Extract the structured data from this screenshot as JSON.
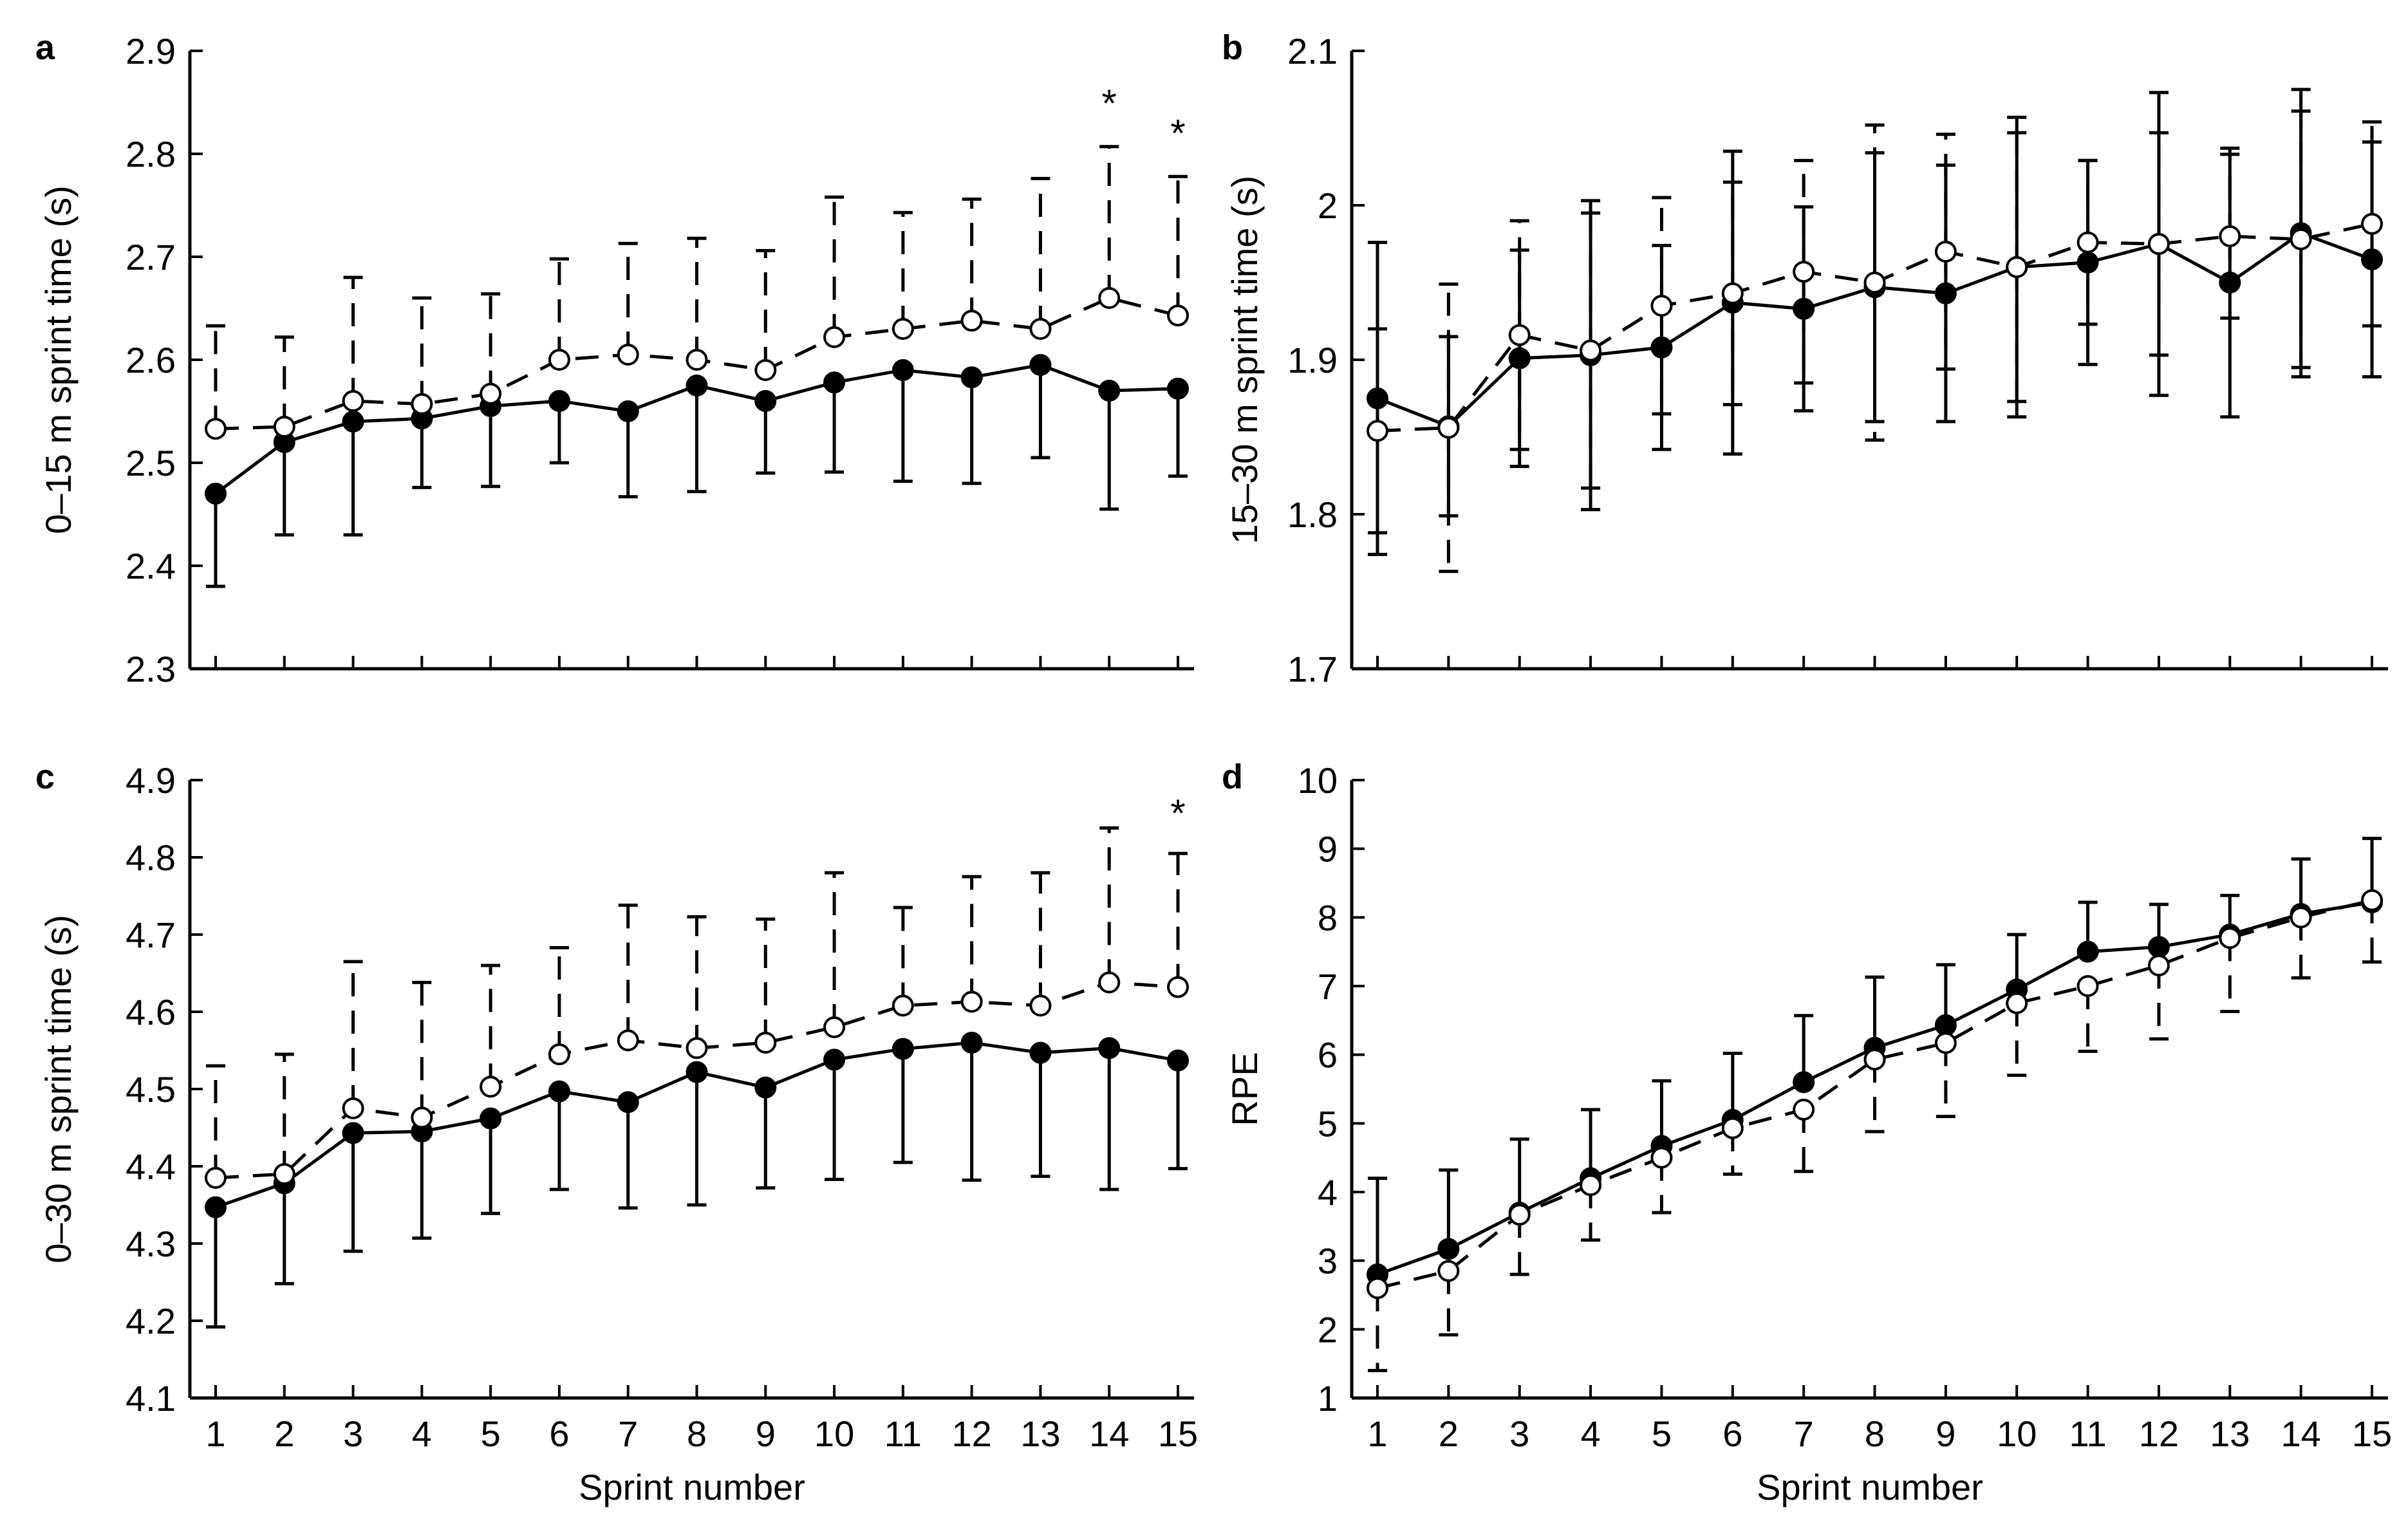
{
  "chart_data": [
    {
      "panel": "a",
      "type": "line",
      "ylabel": "0–15 m sprint time (s)",
      "xlabel": "",
      "ylim": [
        2.3,
        2.9
      ],
      "yticks": [
        2.3,
        2.4,
        2.5,
        2.6,
        2.7,
        2.8,
        2.9
      ],
      "ytick_labels": [
        "2.3",
        "2.4",
        "2.5",
        "2.6",
        "2.7",
        "2.8",
        "2.9"
      ],
      "x": [
        1,
        2,
        3,
        4,
        5,
        6,
        7,
        8,
        9,
        10,
        11,
        12,
        13,
        14,
        15
      ],
      "series": [
        {
          "name": "filled",
          "marker": "filled-circle",
          "line": "solid",
          "values": [
            2.47,
            2.52,
            2.54,
            2.543,
            2.555,
            2.56,
            2.55,
            2.575,
            2.56,
            2.578,
            2.59,
            2.583,
            2.595,
            2.57,
            2.572
          ],
          "error": [
            0.09,
            0.09,
            0.11,
            0.067,
            0.078,
            0.06,
            0.083,
            0.103,
            0.07,
            0.087,
            0.108,
            0.103,
            0.09,
            0.115,
            0.085
          ],
          "error_dir": "down"
        },
        {
          "name": "open",
          "marker": "open-circle",
          "line": "dashed",
          "values": [
            2.533,
            2.535,
            2.56,
            2.557,
            2.567,
            2.6,
            2.605,
            2.6,
            2.59,
            2.622,
            2.63,
            2.638,
            2.63,
            2.66,
            2.643
          ],
          "error": [
            0.1,
            0.087,
            0.12,
            0.103,
            0.097,
            0.098,
            0.108,
            0.118,
            0.116,
            0.136,
            0.113,
            0.118,
            0.146,
            0.147,
            0.135
          ],
          "error_dir": "up"
        }
      ],
      "annotations": [
        {
          "text": "*",
          "x": 14,
          "y": 2.855
        },
        {
          "text": "*",
          "x": 15,
          "y": 2.826
        }
      ]
    },
    {
      "panel": "b",
      "type": "line",
      "ylabel": "15–30 m sprint time (s)",
      "xlabel": "",
      "ylim": [
        1.7,
        2.1
      ],
      "yticks": [
        1.7,
        1.8,
        1.9,
        2.0,
        2.1
      ],
      "ytick_labels": [
        "1.7",
        "1.8",
        "1.9",
        "2",
        "2.1"
      ],
      "x": [
        1,
        2,
        3,
        4,
        5,
        6,
        7,
        8,
        9,
        10,
        11,
        12,
        13,
        14,
        15
      ],
      "series": [
        {
          "name": "filled",
          "marker": "filled-circle",
          "line": "solid",
          "values": [
            1.875,
            1.857,
            1.901,
            1.903,
            1.908,
            1.937,
            1.933,
            1.947,
            1.943,
            1.96,
            1.963,
            1.975,
            1.95,
            1.982,
            1.965
          ],
          "error": [
            0.101,
            0.058,
            0.07,
            0.1,
            0.066,
            0.098,
            0.066,
            0.087,
            0.083,
            0.097,
            0.066,
            0.098,
            0.087,
            0.093,
            0.076
          ],
          "error_dir": "both"
        },
        {
          "name": "open",
          "marker": "open-circle",
          "line": "dashed",
          "values": [
            1.854,
            1.856,
            1.916,
            1.906,
            1.935,
            1.943,
            1.957,
            1.95,
            1.97,
            1.96,
            1.976,
            1.975,
            1.98,
            1.978,
            1.988
          ],
          "error": [
            0.066,
            0.093,
            0.074,
            0.089,
            0.07,
            0.072,
            0.072,
            0.102,
            0.076,
            0.087,
            0.053,
            0.072,
            0.053,
            0.083,
            0.066
          ],
          "error_dir": "both"
        }
      ],
      "annotations": []
    },
    {
      "panel": "c",
      "type": "line",
      "ylabel": "0–30 m sprint time (s)",
      "xlabel": "Sprint number",
      "ylim": [
        4.1,
        4.9
      ],
      "yticks": [
        4.1,
        4.2,
        4.3,
        4.4,
        4.5,
        4.6,
        4.7,
        4.8,
        4.9
      ],
      "ytick_labels": [
        "4.1",
        "4.2",
        "4.3",
        "4.4",
        "4.5",
        "4.6",
        "4.7",
        "4.8",
        "4.9"
      ],
      "x": [
        1,
        2,
        3,
        4,
        5,
        6,
        7,
        8,
        9,
        10,
        11,
        12,
        13,
        14,
        15
      ],
      "xtick_labels": [
        "1",
        "2",
        "3",
        "4",
        "5",
        "6",
        "7",
        "8",
        "9",
        "10",
        "11",
        "12",
        "13",
        "14",
        "15"
      ],
      "series": [
        {
          "name": "filled",
          "marker": "filled-circle",
          "line": "solid",
          "values": [
            4.347,
            4.378,
            4.443,
            4.445,
            4.462,
            4.497,
            4.483,
            4.522,
            4.502,
            4.538,
            4.552,
            4.56,
            4.547,
            4.553,
            4.537
          ],
          "error": [
            0.155,
            0.13,
            0.153,
            0.138,
            0.123,
            0.127,
            0.137,
            0.172,
            0.13,
            0.155,
            0.147,
            0.178,
            0.16,
            0.183,
            0.14
          ],
          "error_dir": "down"
        },
        {
          "name": "open",
          "marker": "open-circle",
          "line": "dashed",
          "values": [
            4.385,
            4.39,
            4.475,
            4.463,
            4.503,
            4.545,
            4.563,
            4.553,
            4.56,
            4.58,
            4.608,
            4.613,
            4.608,
            4.638,
            4.632
          ],
          "error": [
            0.145,
            0.155,
            0.19,
            0.175,
            0.157,
            0.138,
            0.175,
            0.17,
            0.16,
            0.2,
            0.127,
            0.162,
            0.172,
            0.2,
            0.173
          ],
          "error_dir": "up"
        }
      ],
      "annotations": [
        {
          "text": "*",
          "x": 15,
          "y": 4.865
        }
      ]
    },
    {
      "panel": "d",
      "type": "line",
      "ylabel": "RPE",
      "xlabel": "Sprint number",
      "ylim": [
        1,
        10
      ],
      "yticks": [
        1,
        2,
        3,
        4,
        5,
        6,
        7,
        8,
        9,
        10
      ],
      "ytick_labels": [
        "1",
        "2",
        "3",
        "4",
        "5",
        "6",
        "7",
        "8",
        "9",
        "10"
      ],
      "x": [
        1,
        2,
        3,
        4,
        5,
        6,
        7,
        8,
        9,
        10,
        11,
        12,
        13,
        14,
        15
      ],
      "xtick_labels": [
        "1",
        "2",
        "3",
        "4",
        "5",
        "6",
        "7",
        "8",
        "9",
        "10",
        "11",
        "12",
        "13",
        "14",
        "15"
      ],
      "series": [
        {
          "name": "filled",
          "marker": "filled-circle",
          "line": "solid",
          "values": [
            2.8,
            3.17,
            3.7,
            4.2,
            4.67,
            5.05,
            5.6,
            6.1,
            6.43,
            6.95,
            7.5,
            7.57,
            7.75,
            8.05,
            8.22
          ],
          "error": [
            1.4,
            1.15,
            1.07,
            1.0,
            0.95,
            0.97,
            0.97,
            1.03,
            0.88,
            0.8,
            0.72,
            0.62,
            0.57,
            0.8,
            0.93
          ],
          "error_dir": "up"
        },
        {
          "name": "open",
          "marker": "open-circle",
          "line": "dashed",
          "values": [
            2.6,
            2.85,
            3.67,
            4.1,
            4.5,
            4.93,
            5.2,
            5.93,
            6.17,
            6.75,
            7.0,
            7.3,
            7.7,
            8.0,
            8.25
          ],
          "error": [
            1.2,
            0.93,
            0.87,
            0.8,
            0.8,
            0.67,
            0.9,
            1.05,
            1.07,
            1.05,
            0.95,
            1.07,
            1.07,
            0.88,
            0.9
          ],
          "error_dir": "down"
        }
      ],
      "annotations": []
    }
  ]
}
